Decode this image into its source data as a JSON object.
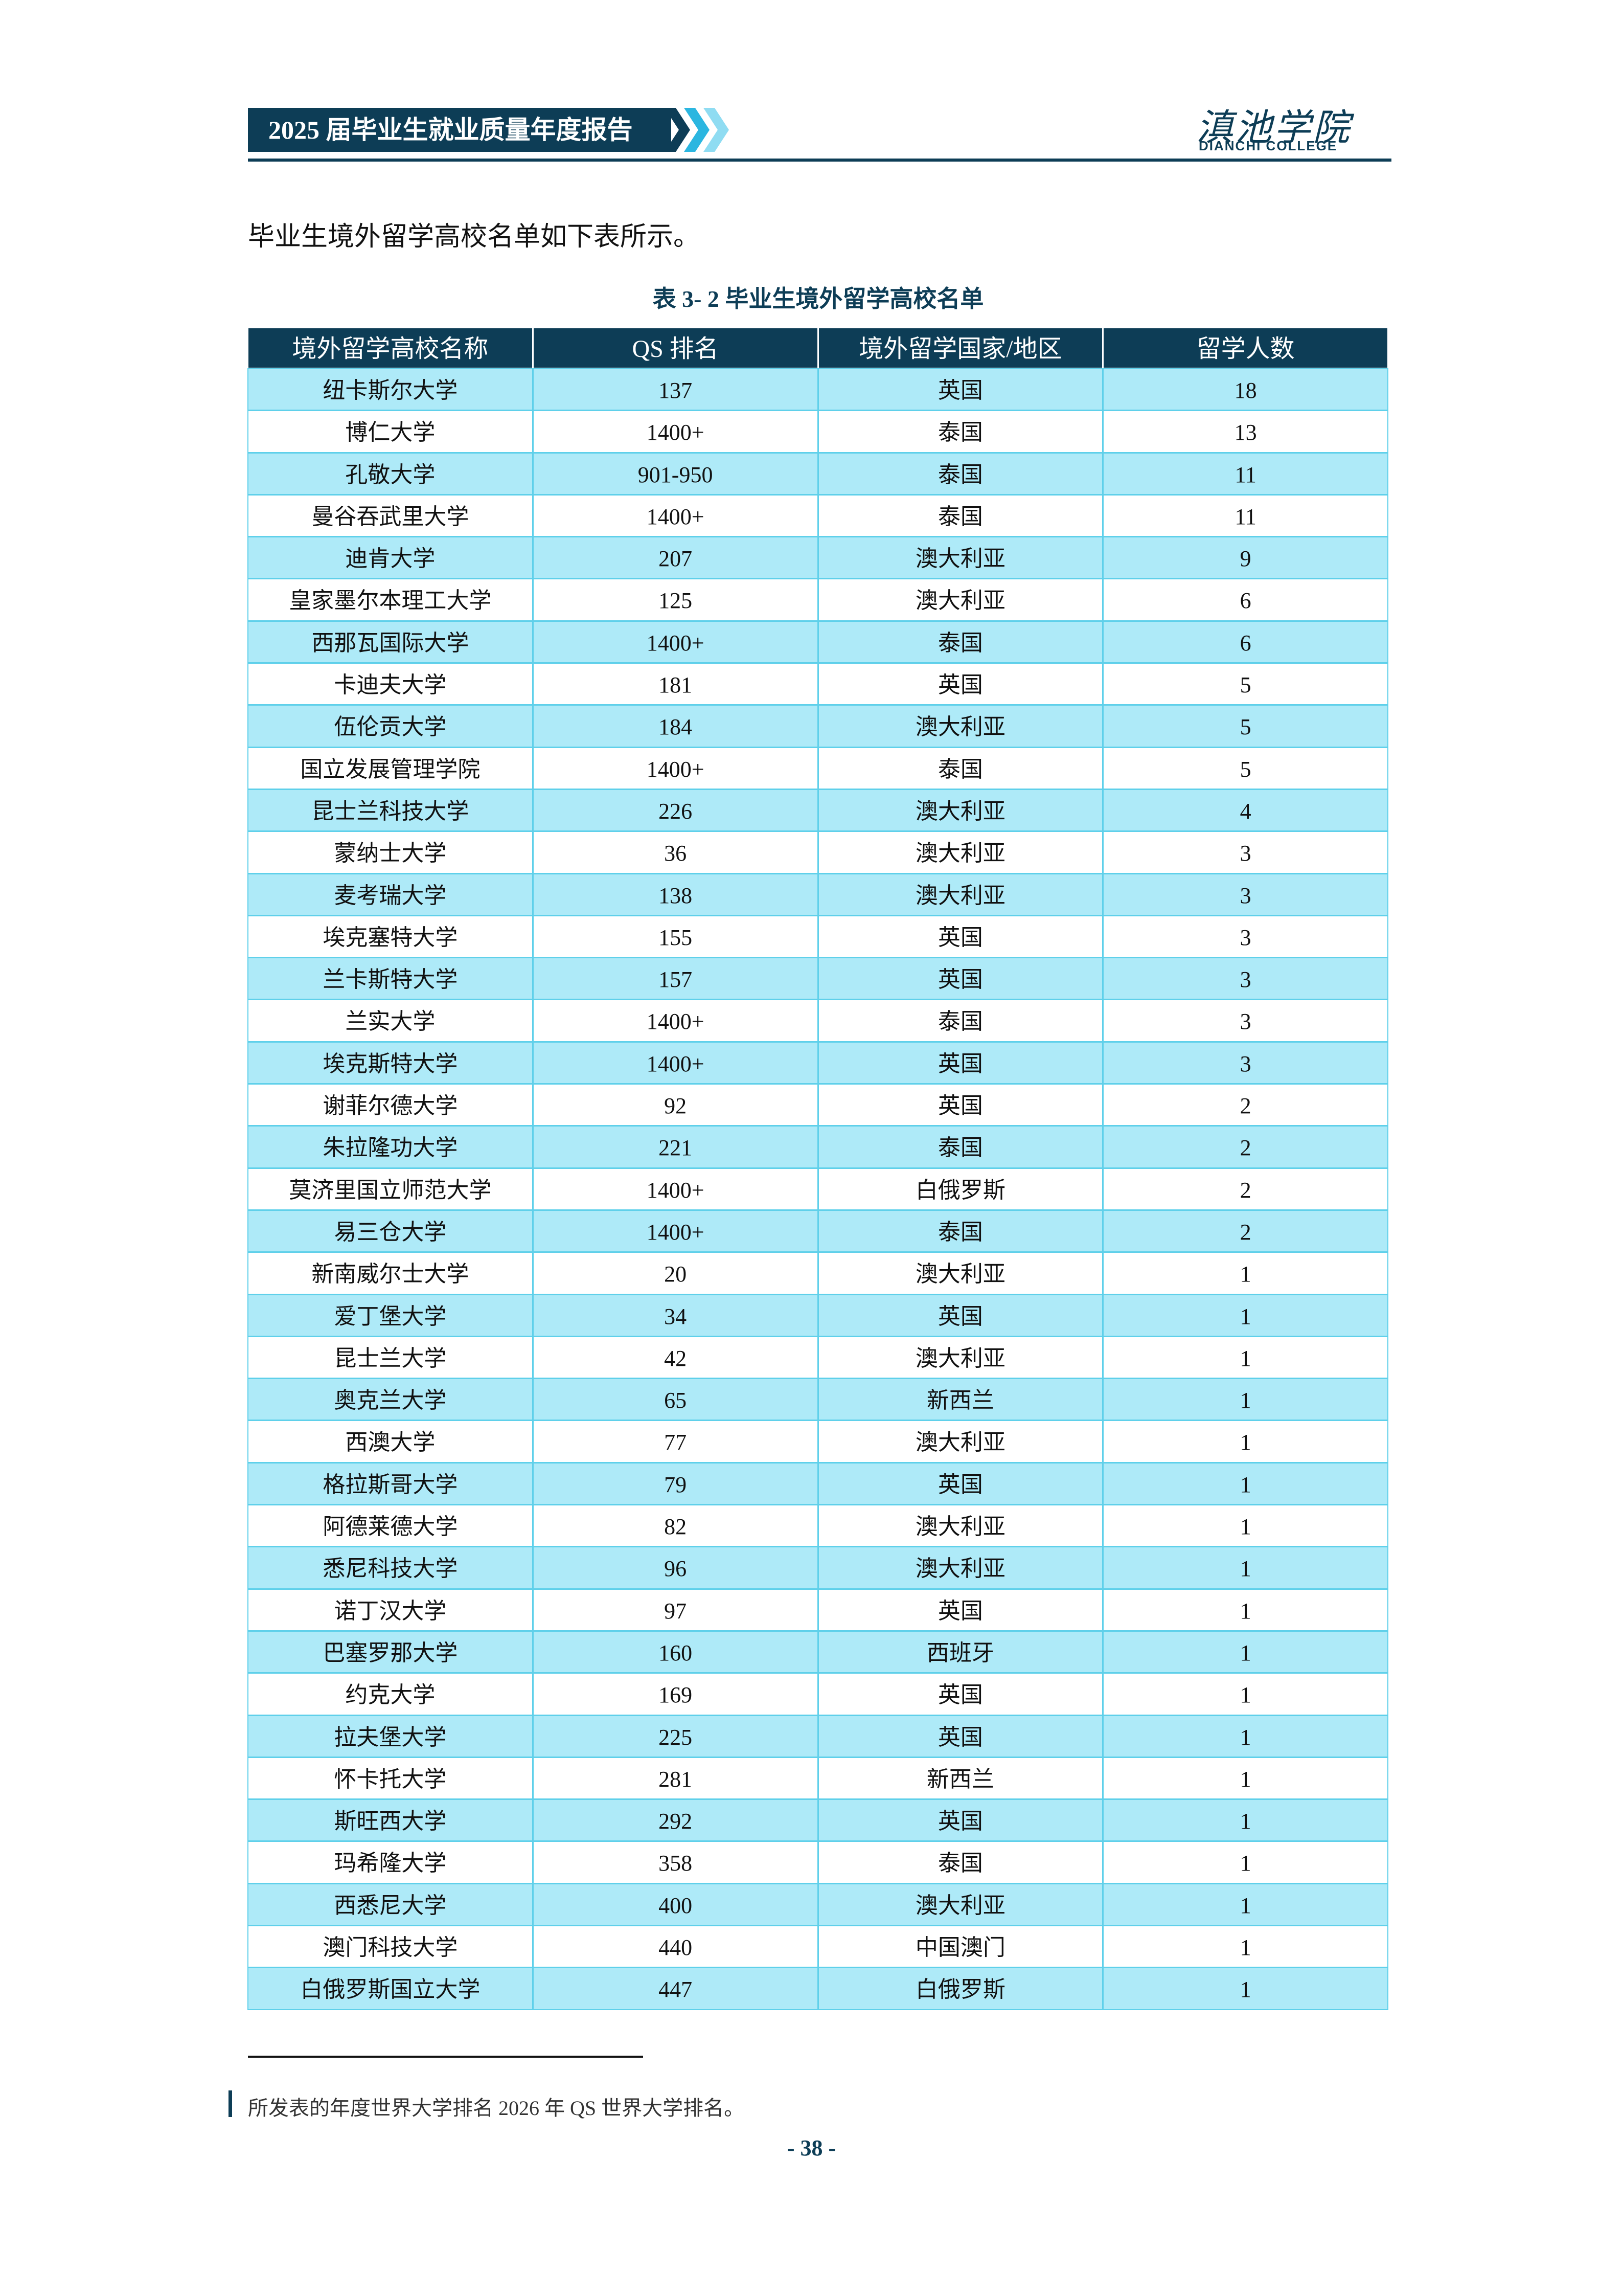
{
  "header": {
    "title": "2025 届毕业生就业质量年度报告",
    "logo_cn": "滇池学院",
    "logo_en": "DIANCHI COLLEGE"
  },
  "intro": "毕业生境外留学高校名单如下表所示。",
  "table": {
    "caption": "表 3- 2  毕业生境外留学高校名单",
    "columns": [
      "境外留学高校名称",
      "QS 排名",
      "境外留学国家/地区",
      "留学人数"
    ],
    "rows": [
      [
        "纽卡斯尔大学",
        137,
        "英国",
        18
      ],
      [
        "博仁大学",
        "1400+",
        "泰国",
        13
      ],
      [
        "孔敬大学",
        "901-950",
        "泰国",
        11
      ],
      [
        "曼谷吞武里大学",
        "1400+",
        "泰国",
        11
      ],
      [
        "迪肯大学",
        207,
        "澳大利亚",
        9
      ],
      [
        "皇家墨尔本理工大学",
        125,
        "澳大利亚",
        6
      ],
      [
        "西那瓦国际大学",
        "1400+",
        "泰国",
        6
      ],
      [
        "卡迪夫大学",
        181,
        "英国",
        5
      ],
      [
        "伍伦贡大学",
        184,
        "澳大利亚",
        5
      ],
      [
        "国立发展管理学院",
        "1400+",
        "泰国",
        5
      ],
      [
        "昆士兰科技大学",
        226,
        "澳大利亚",
        4
      ],
      [
        "蒙纳士大学",
        36,
        "澳大利亚",
        3
      ],
      [
        "麦考瑞大学",
        138,
        "澳大利亚",
        3
      ],
      [
        "埃克塞特大学",
        155,
        "英国",
        3
      ],
      [
        "兰卡斯特大学",
        157,
        "英国",
        3
      ],
      [
        "兰实大学",
        "1400+",
        "泰国",
        3
      ],
      [
        "埃克斯特大学",
        "1400+",
        "英国",
        3
      ],
      [
        "谢菲尔德大学",
        92,
        "英国",
        2
      ],
      [
        "朱拉隆功大学",
        221,
        "泰国",
        2
      ],
      [
        "莫济里国立师范大学",
        "1400+",
        "白俄罗斯",
        2
      ],
      [
        "易三仓大学",
        "1400+",
        "泰国",
        2
      ],
      [
        "新南威尔士大学",
        20,
        "澳大利亚",
        1
      ],
      [
        "爱丁堡大学",
        34,
        "英国",
        1
      ],
      [
        "昆士兰大学",
        42,
        "澳大利亚",
        1
      ],
      [
        "奥克兰大学",
        65,
        "新西兰",
        1
      ],
      [
        "西澳大学",
        77,
        "澳大利亚",
        1
      ],
      [
        "格拉斯哥大学",
        79,
        "英国",
        1
      ],
      [
        "阿德莱德大学",
        82,
        "澳大利亚",
        1
      ],
      [
        "悉尼科技大学",
        96,
        "澳大利亚",
        1
      ],
      [
        "诺丁汉大学",
        97,
        "英国",
        1
      ],
      [
        "巴塞罗那大学",
        160,
        "西班牙",
        1
      ],
      [
        "约克大学",
        169,
        "英国",
        1
      ],
      [
        "拉夫堡大学",
        225,
        "英国",
        1
      ],
      [
        "怀卡托大学",
        281,
        "新西兰",
        1
      ],
      [
        "斯旺西大学",
        292,
        "英国",
        1
      ],
      [
        "玛希隆大学",
        358,
        "泰国",
        1
      ],
      [
        "西悉尼大学",
        400,
        "澳大利亚",
        1
      ],
      [
        "澳门科技大学",
        440,
        "中国澳门",
        1
      ],
      [
        "白俄罗斯国立大学",
        447,
        "白俄罗斯",
        1
      ]
    ]
  },
  "footnote": "所发表的年度世界大学排名 2026 年 QS 世界大学排名。",
  "page_number": "- 38 -"
}
